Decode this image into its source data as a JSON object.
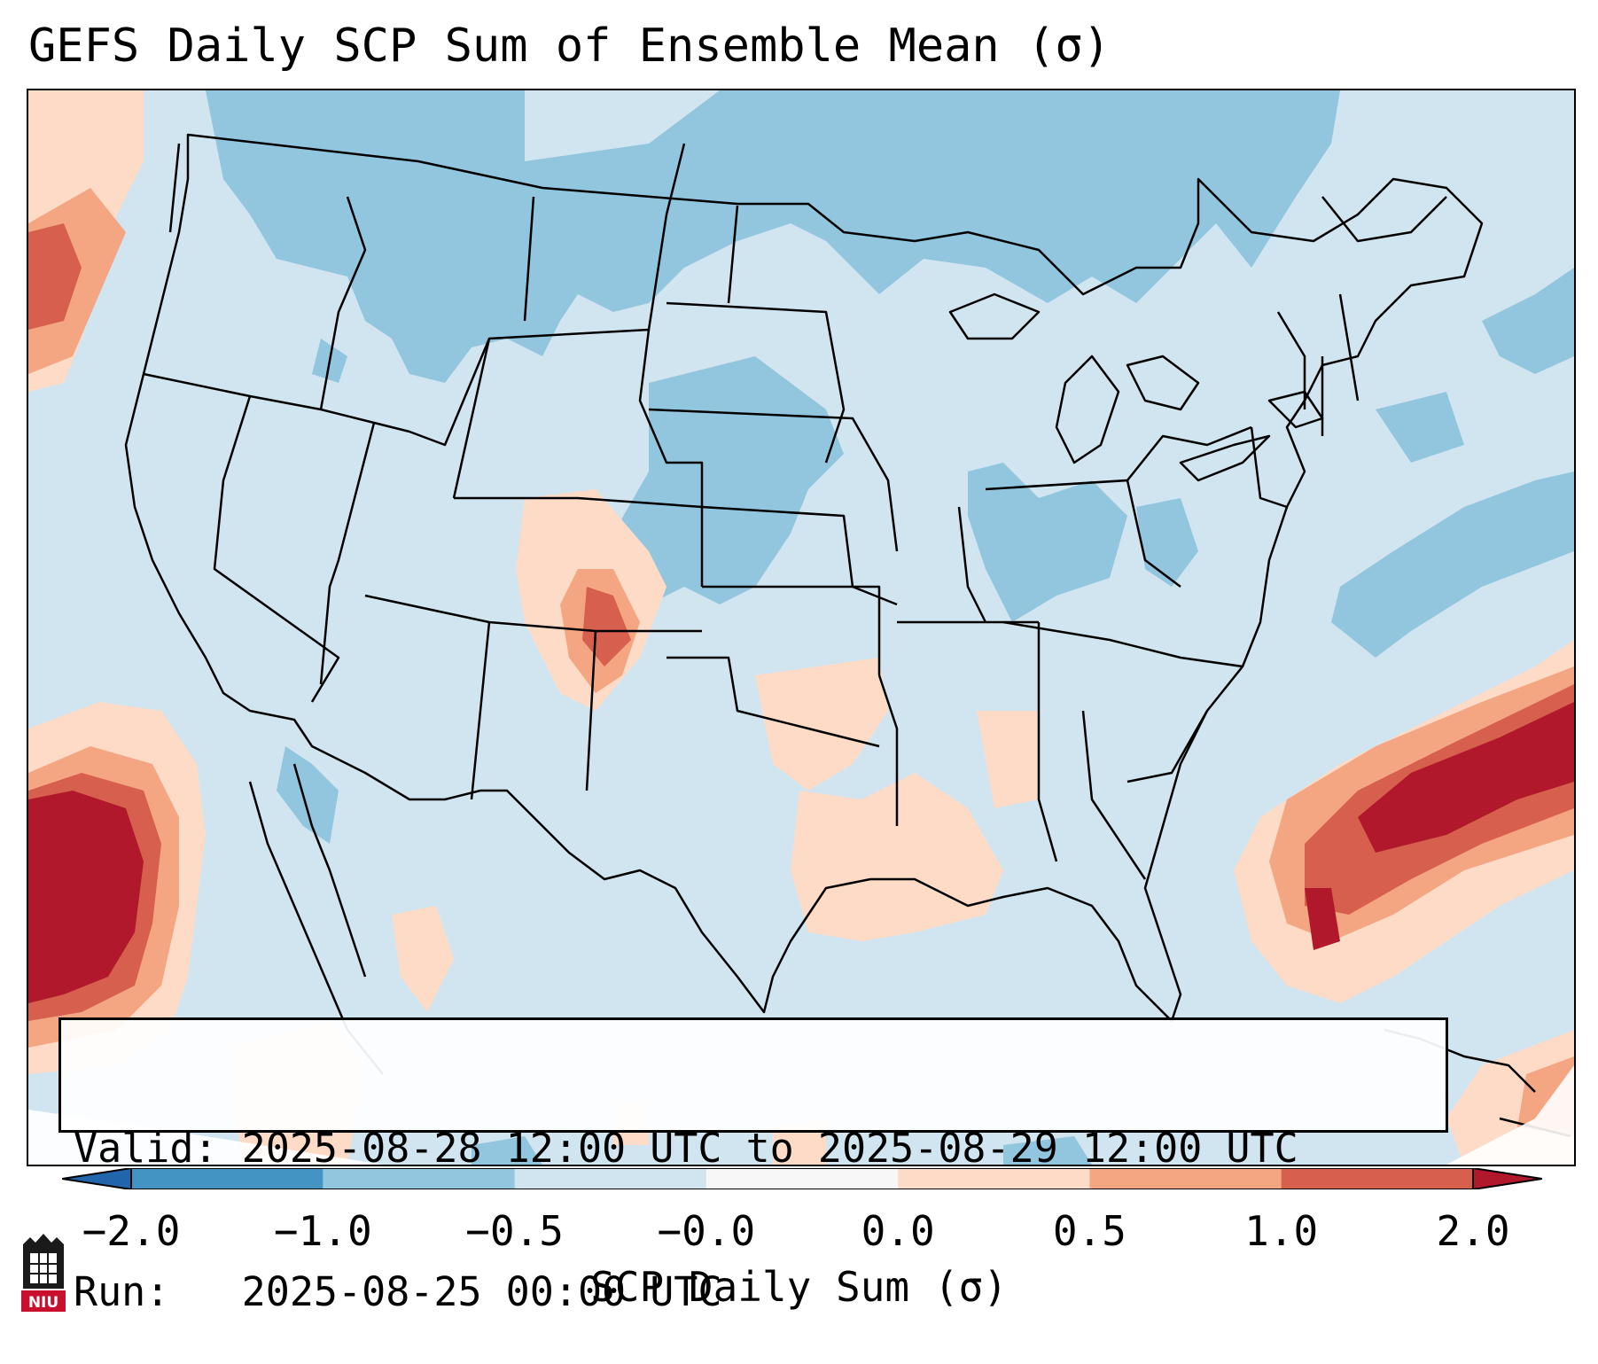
{
  "title": "GEFS Daily SCP Sum of Ensemble Mean (σ)",
  "info": {
    "valid_line": "Valid: 2025-08-28 12:00 UTC to 2025-08-29 12:00 UTC",
    "run_line": "Run:   2025-08-25 00:00 UTC"
  },
  "colorbar": {
    "label": "SCP Daily Sum (σ)",
    "ticks": [
      "−2.0",
      "−1.0",
      "−0.5",
      "−0.0",
      "0.0",
      "0.5",
      "1.0",
      "2.0"
    ],
    "bin_colors": [
      "#4393c3",
      "#92c5de",
      "#d1e5f0",
      "#f7f7f7",
      "#fddbc7",
      "#f4a582",
      "#d6604d"
    ],
    "extend_low_color": "#2166ac",
    "extend_high_color": "#b2182b"
  },
  "logo": {
    "text": "NIU"
  }
}
